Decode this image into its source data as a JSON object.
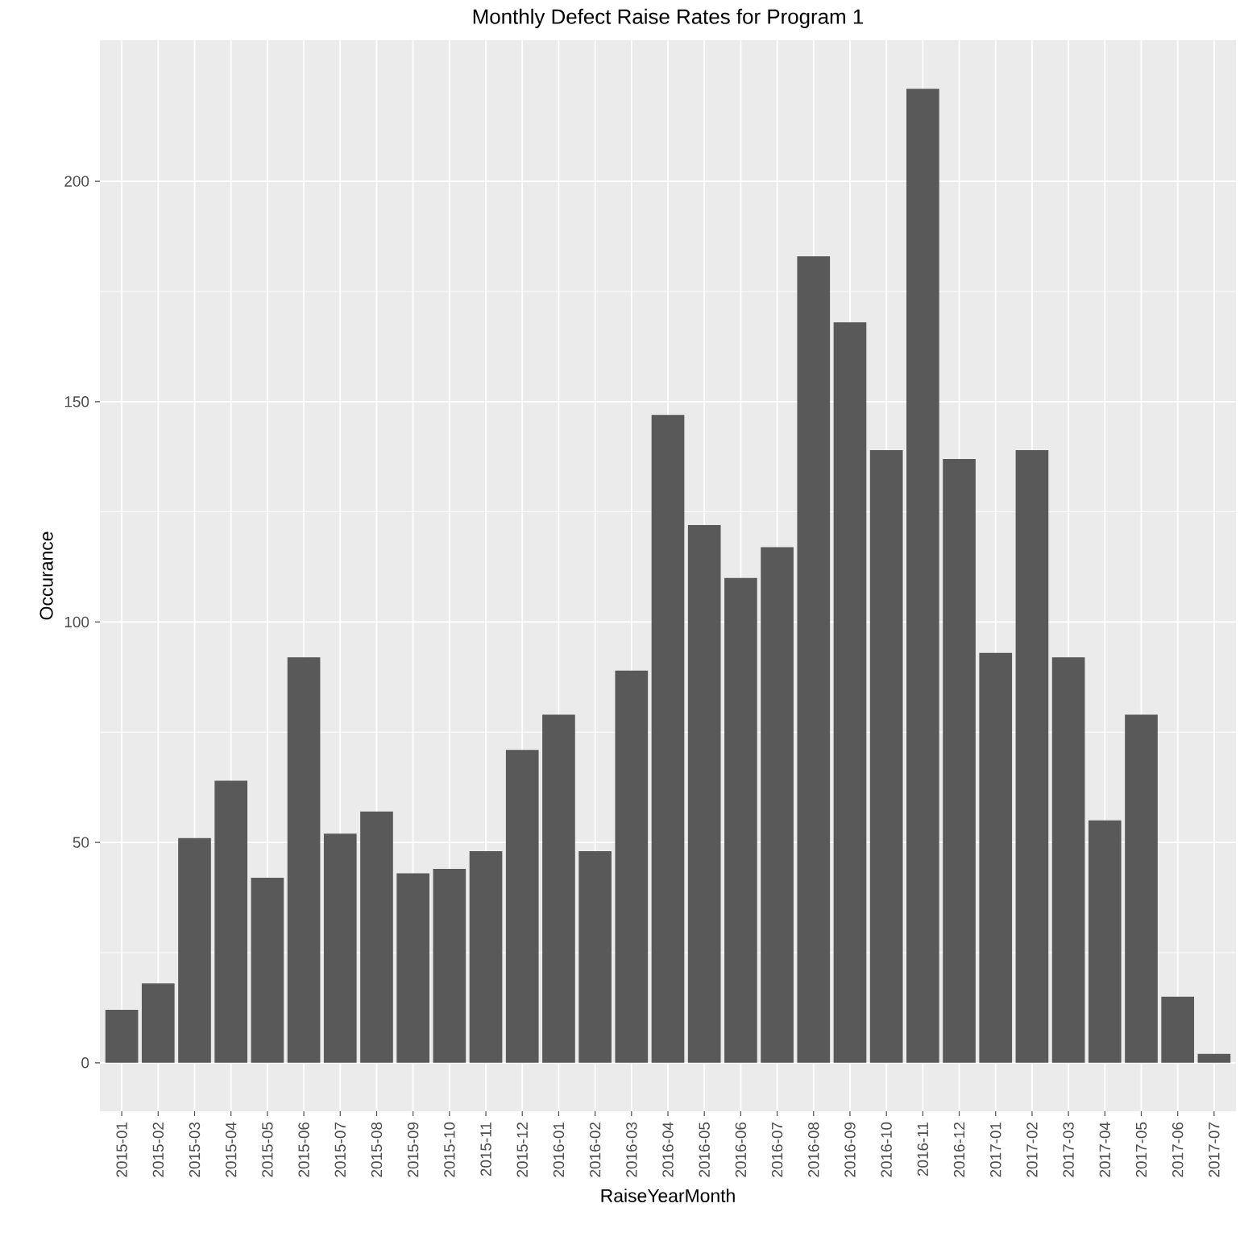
{
  "chart_data": {
    "type": "bar",
    "title": "Monthly Defect Raise Rates for Program 1",
    "xlabel": "RaiseYearMonth",
    "ylabel": "Occurance",
    "categories": [
      "2015-01",
      "2015-02",
      "2015-03",
      "2015-04",
      "2015-05",
      "2015-06",
      "2015-07",
      "2015-08",
      "2015-09",
      "2015-10",
      "2015-11",
      "2015-12",
      "2016-01",
      "2016-02",
      "2016-03",
      "2016-04",
      "2016-05",
      "2016-06",
      "2016-07",
      "2016-08",
      "2016-09",
      "2016-10",
      "2016-11",
      "2016-12",
      "2017-01",
      "2017-02",
      "2017-03",
      "2017-04",
      "2017-05",
      "2017-06",
      "2017-07"
    ],
    "values": [
      12,
      18,
      51,
      64,
      42,
      92,
      52,
      57,
      43,
      44,
      48,
      71,
      79,
      48,
      89,
      147,
      122,
      110,
      117,
      183,
      168,
      139,
      221,
      137,
      93,
      139,
      92,
      55,
      79,
      15,
      2
    ],
    "color": "#595959",
    "ylim": [
      -11,
      232
    ],
    "yticks": [
      0,
      50,
      100,
      150,
      200
    ],
    "grid": true
  }
}
